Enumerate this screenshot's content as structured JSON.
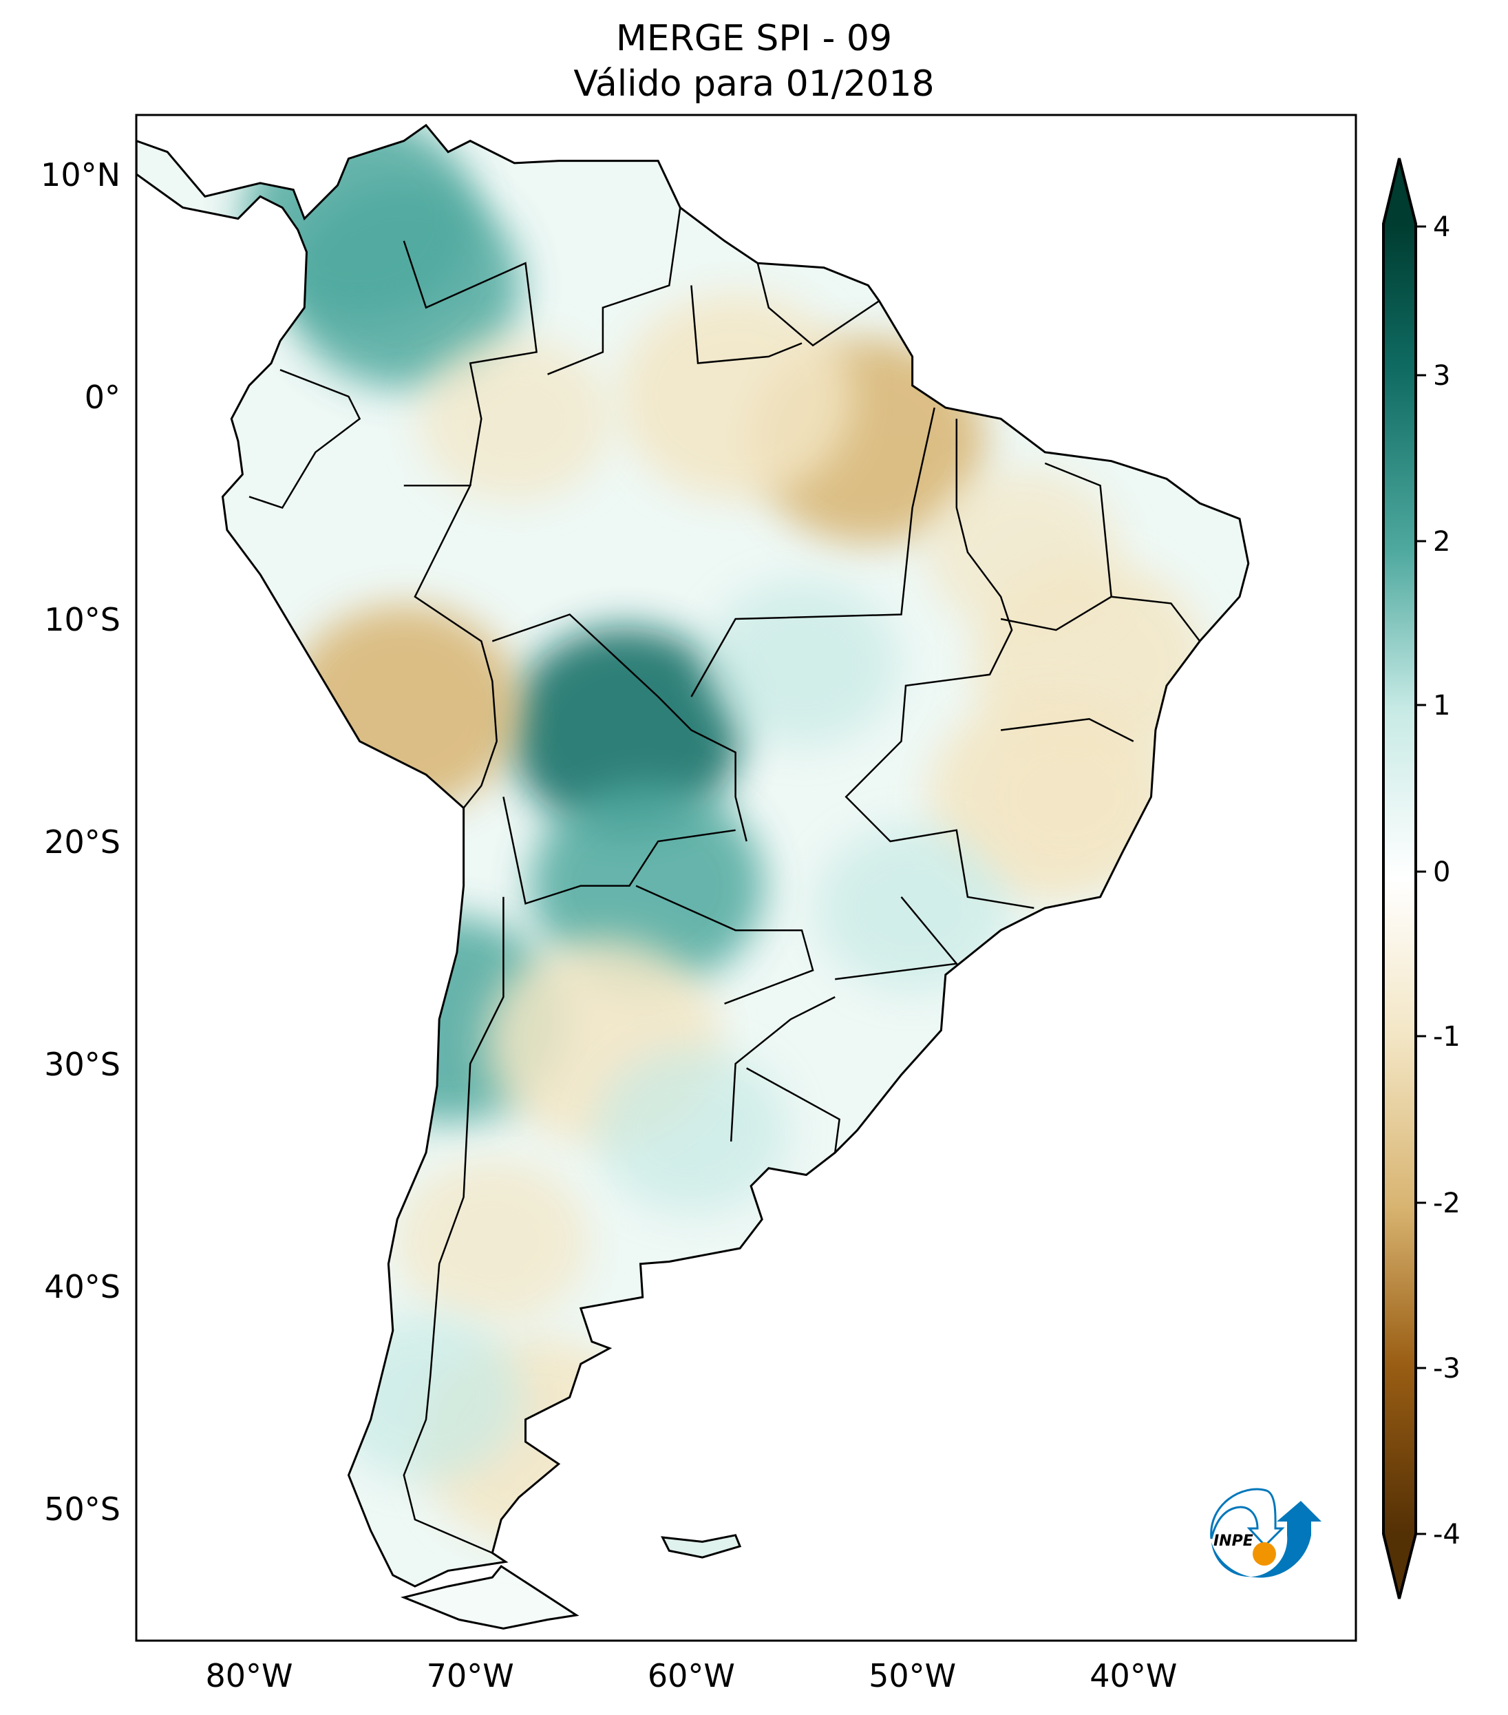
{
  "chart_data": {
    "type": "heatmap",
    "title": [
      "MERGE   SPI - 09",
      "Válido para 01/2018"
    ],
    "variable": "SPI - 09",
    "dataset": "MERGE",
    "valid_date": "01/2018",
    "xlabel": "",
    "ylabel": "",
    "xlim": [
      -85,
      -20
    ],
    "ylim": [
      -56,
      12.7
    ],
    "xticks": [
      {
        "value": -80,
        "label": "80°W"
      },
      {
        "value": -70,
        "label": "70°W"
      },
      {
        "value": -60,
        "label": "60°W"
      },
      {
        "value": -50,
        "label": "50°W"
      },
      {
        "value": -40,
        "label": "40°W"
      }
    ],
    "yticks": [
      {
        "value": 10,
        "label": "10°N"
      },
      {
        "value": 0,
        "label": "0°"
      },
      {
        "value": -10,
        "label": "10°S"
      },
      {
        "value": -20,
        "label": "20°S"
      },
      {
        "value": -30,
        "label": "30°S"
      },
      {
        "value": -40,
        "label": "40°S"
      },
      {
        "value": -50,
        "label": "50°S"
      }
    ],
    "colorbar": {
      "colormap": "BrBG",
      "range": [
        -4,
        4
      ],
      "extend": "both",
      "ticks": [
        {
          "value": 4,
          "label": "4"
        },
        {
          "value": 3,
          "label": "3"
        },
        {
          "value": 2,
          "label": "2"
        },
        {
          "value": 1,
          "label": "1"
        },
        {
          "value": 0,
          "label": "0"
        },
        {
          "value": -1,
          "label": "-1"
        },
        {
          "value": -2,
          "label": "-2"
        },
        {
          "value": -3,
          "label": "-3"
        },
        {
          "value": -4,
          "label": "-4"
        }
      ],
      "colors": {
        "4": "#003c30",
        "3": "#0f6b62",
        "2": "#4fa99f",
        "1": "#c7eae5",
        "0": "#ffffff",
        "-1": "#f3e6c5",
        "-2": "#d8b471",
        "-3": "#9a5e14",
        "-4": "#543005"
      }
    },
    "anomalies": [
      {
        "lon": -63,
        "lat": -15,
        "value": 2.6
      },
      {
        "lon": -73,
        "lat": 5,
        "value": 2.0
      },
      {
        "lon": -75,
        "lat": 8,
        "value": 1.8
      },
      {
        "lon": -62,
        "lat": -22,
        "value": 2.0
      },
      {
        "lon": -71,
        "lat": -28,
        "value": 1.8
      },
      {
        "lon": -52,
        "lat": -2,
        "value": -1.5
      },
      {
        "lon": -58,
        "lat": 0,
        "value": -1.3
      },
      {
        "lon": -42,
        "lat": -12,
        "value": -1.3
      },
      {
        "lon": -44,
        "lat": -18,
        "value": -1.2
      },
      {
        "lon": -73,
        "lat": -14,
        "value": -1.5
      },
      {
        "lon": -64,
        "lat": -29,
        "value": -1.3
      },
      {
        "lon": -67,
        "lat": -47,
        "value": -1.3
      }
    ]
  },
  "logo": {
    "text": "INPE"
  }
}
